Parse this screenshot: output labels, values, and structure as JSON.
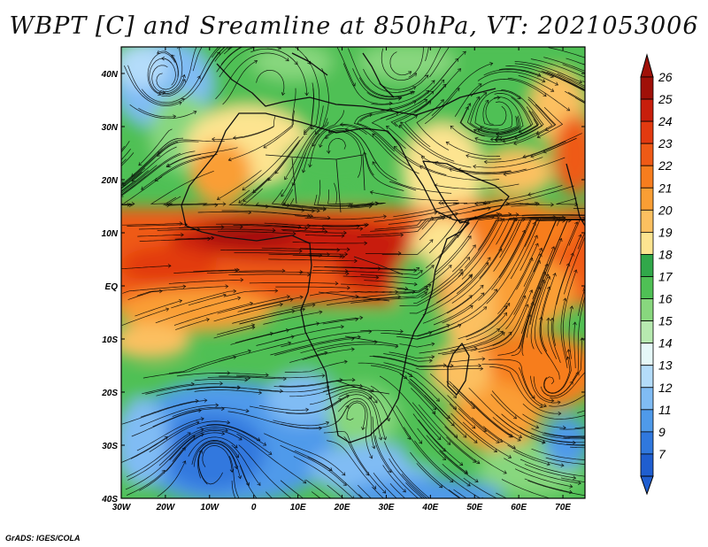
{
  "title": "WBPT [C] and Sreamline at 850hPa, VT: 2021053006",
  "footer": "GrADS: IGES/COLA",
  "map": {
    "lon_range": [
      -30,
      75
    ],
    "lat_range": [
      -40,
      45
    ],
    "x_ticks": [
      "30W",
      "20W",
      "10W",
      "0",
      "10E",
      "20E",
      "30E",
      "40E",
      "50E",
      "60E",
      "70E"
    ],
    "y_ticks": [
      "40N",
      "30N",
      "20N",
      "10N",
      "EQ",
      "10S",
      "20S",
      "30S",
      "40S"
    ]
  },
  "colorbar": {
    "labels": [
      "26",
      "25",
      "24",
      "23",
      "22",
      "21",
      "20",
      "19",
      "18",
      "17",
      "16",
      "15",
      "14",
      "13",
      "12",
      "11",
      "9",
      "7"
    ],
    "colors": [
      "#a01008",
      "#c81e0c",
      "#e23a10",
      "#ef5a16",
      "#f77d1e",
      "#fa9e34",
      "#fcc060",
      "#fde490",
      "#31a84a",
      "#4fc055",
      "#88d77e",
      "#b7eab0",
      "#e6f8f8",
      "#b4dcfa",
      "#80bcf4",
      "#4f9aea",
      "#3078de",
      "#1f5ed0"
    ]
  }
}
